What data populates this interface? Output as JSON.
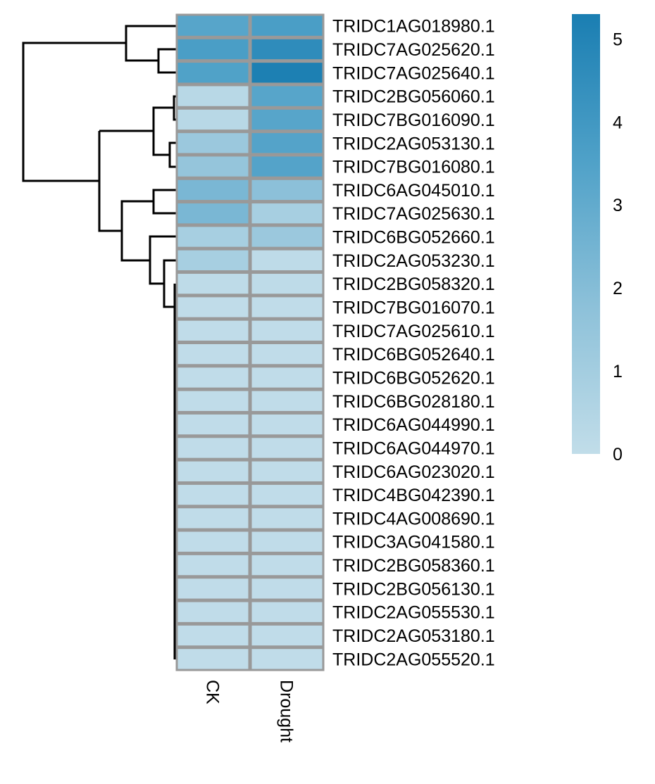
{
  "chart_data": {
    "type": "heatmap",
    "title": "",
    "columns": [
      "CK",
      "Drought"
    ],
    "rows": [
      "TRIDC1AG018980.1",
      "TRIDC7AG025620.1",
      "TRIDC7AG025640.1",
      "TRIDC2BG056060.1",
      "TRIDC7BG016090.1",
      "TRIDC2AG053130.1",
      "TRIDC7BG016080.1",
      "TRIDC6AG045010.1",
      "TRIDC7AG025630.1",
      "TRIDC6BG052660.1",
      "TRIDC2AG053230.1",
      "TRIDC2BG058320.1",
      "TRIDC7BG016070.1",
      "TRIDC7AG025610.1",
      "TRIDC6BG052640.1",
      "TRIDC6BG052620.1",
      "TRIDC6BG028180.1",
      "TRIDC6AG044990.1",
      "TRIDC6AG044970.1",
      "TRIDC6AG023020.1",
      "TRIDC4BG042390.1",
      "TRIDC4AG008690.1",
      "TRIDC3AG041580.1",
      "TRIDC2BG058360.1",
      "TRIDC2BG056130.1",
      "TRIDC2AG055530.1",
      "TRIDC2AG053180.1",
      "TRIDC2AG055520.1"
    ],
    "values": [
      [
        3.3,
        3.7
      ],
      [
        3.7,
        4.6
      ],
      [
        3.5,
        5.2
      ],
      [
        0.3,
        3.3
      ],
      [
        0.3,
        3.3
      ],
      [
        1.3,
        3.4
      ],
      [
        1.5,
        3.4
      ],
      [
        2.3,
        1.8
      ],
      [
        2.3,
        0.9
      ],
      [
        0.9,
        1.3
      ],
      [
        0.9,
        0.1
      ],
      [
        0.1,
        0.1
      ],
      [
        0.05,
        0.05
      ],
      [
        0.05,
        0.05
      ],
      [
        0.05,
        0.05
      ],
      [
        0.05,
        0.05
      ],
      [
        0.05,
        0.05
      ],
      [
        0.05,
        0.05
      ],
      [
        0.05,
        0.05
      ],
      [
        0.05,
        0.05
      ],
      [
        0.05,
        0.05
      ],
      [
        0.05,
        0.05
      ],
      [
        0.05,
        0.05
      ],
      [
        0.05,
        0.05
      ],
      [
        0.05,
        0.05
      ],
      [
        0.05,
        0.05
      ],
      [
        0.05,
        0.05
      ],
      [
        0.05,
        0.05
      ]
    ],
    "color_scale": {
      "min": 0,
      "max": 5.3,
      "colors": [
        "#c1dde9",
        "#8dc1d9",
        "#4fa1c8",
        "#1a7eb2"
      ],
      "ticks": [
        0,
        1,
        2,
        3,
        4,
        5
      ]
    },
    "row_dendrogram": true,
    "cell_border_color": "#999999"
  }
}
